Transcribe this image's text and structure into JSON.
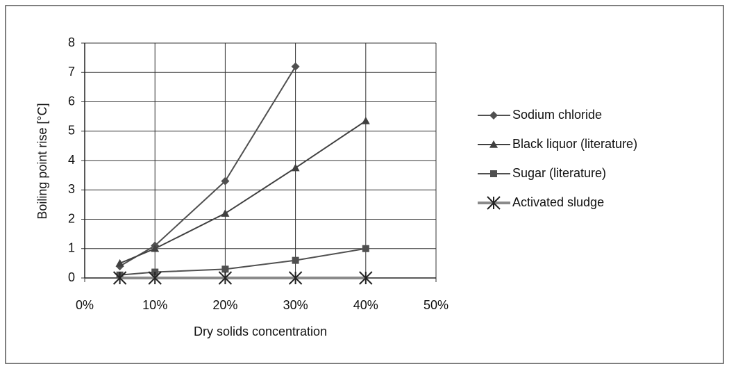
{
  "chart_data": {
    "type": "line",
    "x_label": "Dry solids concentration",
    "y_label": "Boiling point rise [°C]",
    "x": [
      5,
      10,
      20,
      30,
      40
    ],
    "series": [
      {
        "name": "Sodium chloride",
        "color": "#505050",
        "marker": "diamond",
        "values": [
          0.4,
          1.1,
          3.3,
          7.2,
          null
        ]
      },
      {
        "name": "Black liquor (literature)",
        "color": "#404040",
        "marker": "triangle",
        "values": [
          0.5,
          1.0,
          2.2,
          3.75,
          5.35
        ]
      },
      {
        "name": "Sugar (literature)",
        "color": "#505050",
        "marker": "square",
        "values": [
          0.1,
          0.2,
          0.3,
          0.6,
          1.0
        ]
      },
      {
        "name": "Activated sludge",
        "color": "#8a8a8a",
        "marker": "asterisk",
        "values": [
          0,
          0,
          0,
          0,
          0
        ]
      }
    ],
    "xlim": [
      0,
      50
    ],
    "xticks": [
      {
        "value": 0,
        "label": "0%"
      },
      {
        "value": 10,
        "label": "10%"
      },
      {
        "value": 20,
        "label": "20%"
      },
      {
        "value": 30,
        "label": "30%"
      },
      {
        "value": 40,
        "label": "40%"
      },
      {
        "value": 50,
        "label": "50%"
      }
    ],
    "ylim": [
      0,
      8
    ],
    "yticks": [
      0,
      1,
      2,
      3,
      4,
      5,
      6,
      7,
      8
    ],
    "grid": true,
    "legend": "right"
  }
}
